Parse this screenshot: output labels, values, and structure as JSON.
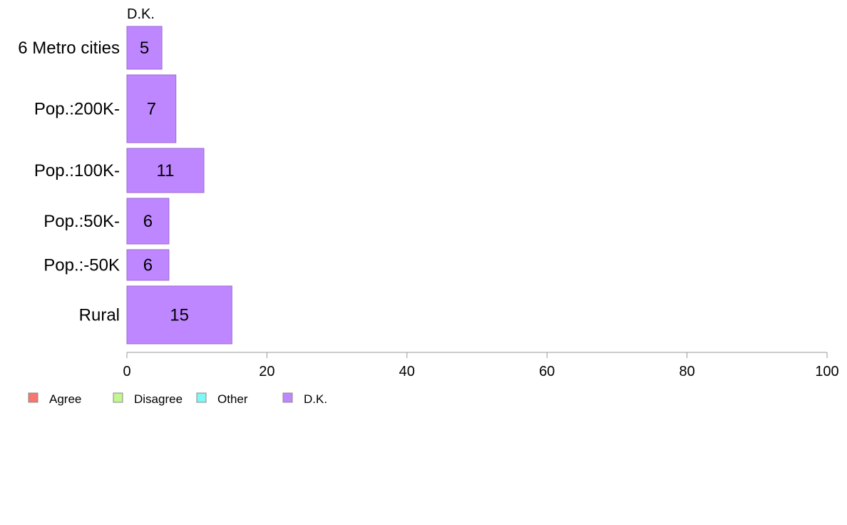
{
  "chart_data": {
    "type": "bar",
    "orientation": "horizontal",
    "panel_label": "D.K.",
    "categories": [
      "6 Metro cities",
      "Pop.:200K-",
      "Pop.:100K-",
      "Pop.:50K-",
      "Pop.:-50K",
      "Rural"
    ],
    "series": [
      {
        "name": "D.K.",
        "values": [
          5,
          7,
          11,
          6,
          6,
          15
        ]
      }
    ],
    "xlim": [
      0,
      100
    ],
    "xticks": [
      0,
      20,
      40,
      60,
      80,
      100
    ],
    "grid": false,
    "legend": {
      "placement": "bottom-left",
      "entries": [
        {
          "label": "Agree",
          "color": "#F8766D"
        },
        {
          "label": "Disagree",
          "color": "#C3F68E"
        },
        {
          "label": "Other",
          "color": "#7FF7F7"
        },
        {
          "label": "D.K.",
          "color": "#BF87FF"
        }
      ]
    },
    "colors": {
      "bar_fill": "#BF87FF",
      "bar_stroke": "#9B6AD6",
      "axis": "#999999"
    }
  }
}
